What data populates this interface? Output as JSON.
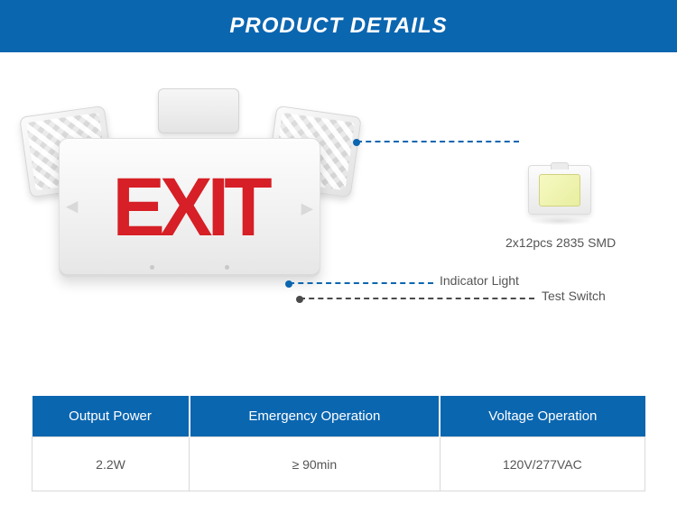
{
  "header": {
    "title": "PRODUCT DETAILS",
    "bg_color": "#0b66b0",
    "text_color": "#ffffff"
  },
  "exit_sign": {
    "text": "EXIT",
    "text_color": "#d61f26",
    "body_gradient": [
      "#fdfdfd",
      "#f0f0f0",
      "#e6e6e6"
    ]
  },
  "callouts": {
    "led": {
      "label": "2x12pcs 2835 SMD",
      "color": "#0b66b0"
    },
    "indicator": {
      "label": "Indicator Light",
      "color": "#0b66b0"
    },
    "test": {
      "label": "Test Switch",
      "color": "#4a4a4a"
    }
  },
  "spec_table": {
    "type": "table",
    "header_bg": "#0b66b0",
    "header_text_color": "#ffffff",
    "cell_border": "#d9d9d9",
    "cell_text_color": "#555555",
    "columns": [
      "Output Power",
      "Emergency Operation",
      "Voltage Operation"
    ],
    "rows": [
      [
        "2.2W",
        "≥ 90min",
        "120V/277VAC"
      ]
    ]
  },
  "led_chip": {
    "body_color": "#f0f0f0",
    "die_color": "#eff3b0"
  }
}
